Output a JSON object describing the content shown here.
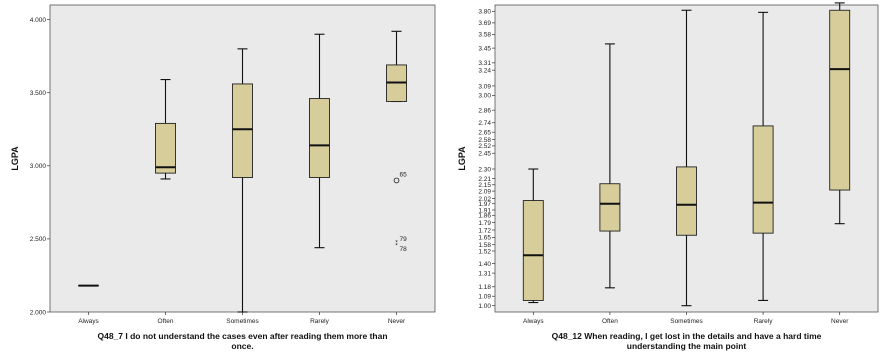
{
  "chart_data": [
    {
      "type": "boxplot",
      "ylabel": "LGPA",
      "xlabel": [
        "Q48_7 I do not understand the cases even after reading them more than",
        "once."
      ],
      "ylim": [
        2.0,
        4.1
      ],
      "yticks": [
        "2.000",
        "2.500",
        "3.000",
        "3.500",
        "4.000"
      ],
      "grid": false,
      "categories": [
        "Always",
        "Often",
        "Sometimes",
        "Rarely",
        "Never"
      ],
      "boxes": [
        {
          "whisker_low": 2.18,
          "q1": 2.18,
          "median": 2.18,
          "q3": 2.18,
          "whisker_high": 2.18
        },
        {
          "whisker_low": 2.91,
          "q1": 2.95,
          "median": 2.99,
          "q3": 3.29,
          "whisker_high": 3.59
        },
        {
          "whisker_low": 2.0,
          "q1": 2.92,
          "median": 3.25,
          "q3": 3.56,
          "whisker_high": 3.8
        },
        {
          "whisker_low": 2.44,
          "q1": 2.92,
          "median": 3.14,
          "q3": 3.46,
          "whisker_high": 3.9
        },
        {
          "whisker_low": 3.44,
          "q1": 3.44,
          "median": 3.57,
          "q3": 3.69,
          "whisker_high": 3.92
        }
      ],
      "outliers": [
        {
          "category": "Never",
          "value": 2.9,
          "label": "65",
          "marker": "circle"
        },
        {
          "category": "Never",
          "value": 2.48,
          "label": "79",
          "marker": "star"
        },
        {
          "category": "Never",
          "value": 2.46,
          "label": "78",
          "marker": "star"
        }
      ]
    },
    {
      "type": "boxplot",
      "ylabel": "LGPA",
      "xlabel": [
        "Q48_12 When reading, I get lost in the details and have a hard time",
        "understanding the main point"
      ],
      "ylim": [
        0.94,
        3.86
      ],
      "yticks": [
        "1.00",
        "1.09",
        "1.18",
        "1.31",
        "1.40",
        "1.52",
        "1.58",
        "1.65",
        "1.72",
        "1.79",
        "1.86",
        "1.91",
        "1.97",
        "2.02",
        "2.09",
        "2.15",
        "2.21",
        "2.30",
        "2.45",
        "2.52",
        "2.58",
        "2.65",
        "2.74",
        "2.86",
        "3.00",
        "3.09",
        "3.24",
        "3.31",
        "3.45",
        "3.58",
        "3.69",
        "3.80"
      ],
      "grid": false,
      "categories": [
        "Always",
        "Often",
        "Sometimes",
        "Rarely",
        "Never"
      ],
      "boxes": [
        {
          "whisker_low": 1.03,
          "q1": 1.05,
          "median": 1.48,
          "q3": 2.0,
          "whisker_high": 2.3
        },
        {
          "whisker_low": 1.17,
          "q1": 1.71,
          "median": 1.97,
          "q3": 2.16,
          "whisker_high": 3.49
        },
        {
          "whisker_low": 1.0,
          "q1": 1.67,
          "median": 1.96,
          "q3": 2.32,
          "whisker_high": 3.81
        },
        {
          "whisker_low": 1.05,
          "q1": 1.69,
          "median": 1.98,
          "q3": 2.71,
          "whisker_high": 3.79
        },
        {
          "whisker_low": 1.78,
          "q1": 2.1,
          "median": 3.25,
          "q3": 3.81,
          "whisker_high": 3.88
        }
      ],
      "outliers": []
    }
  ]
}
